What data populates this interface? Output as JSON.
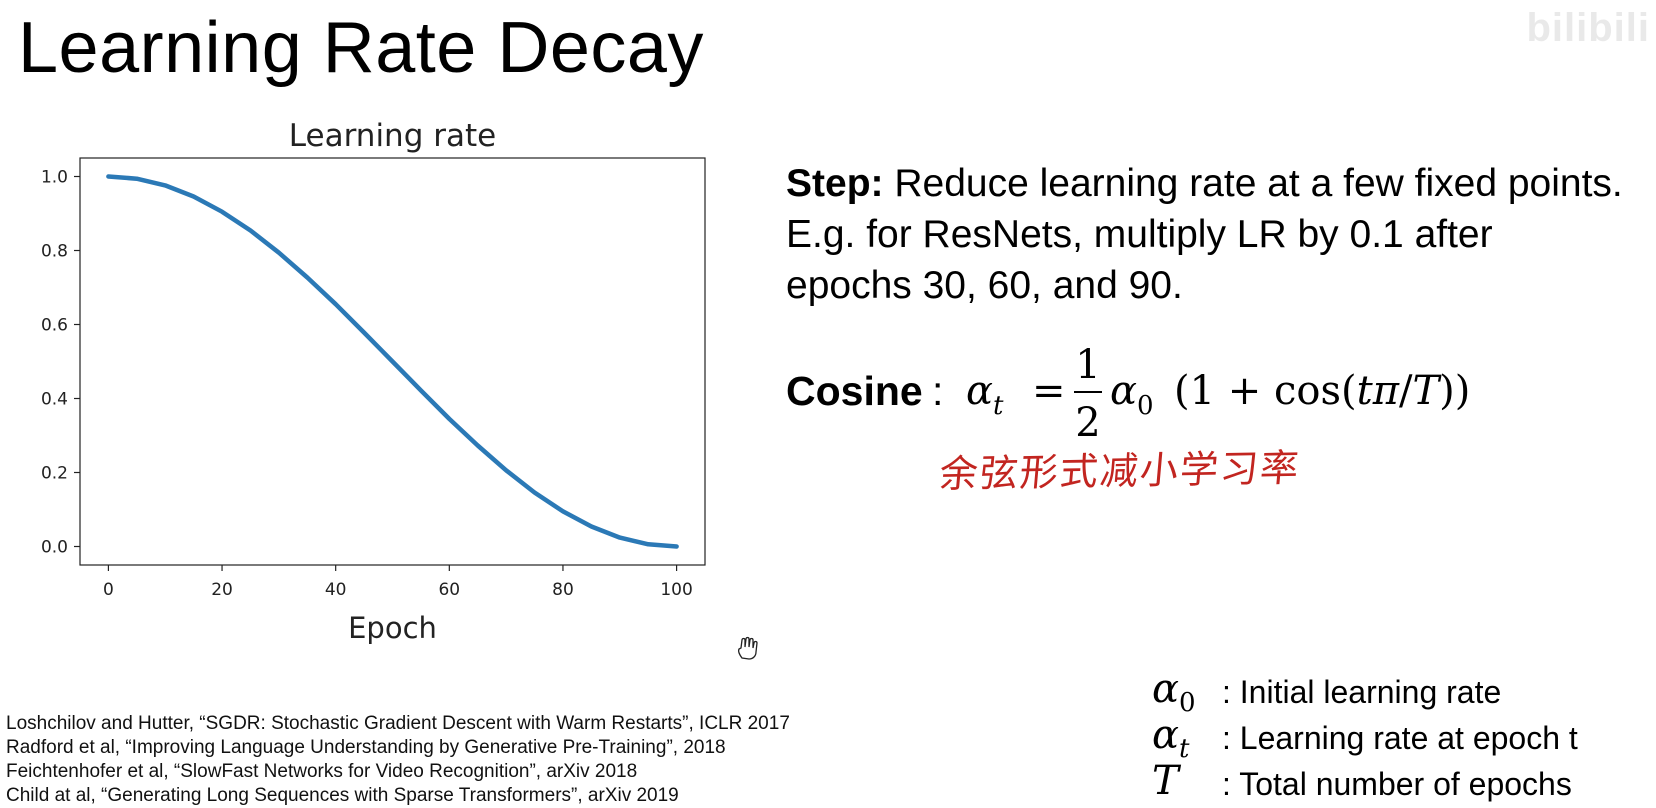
{
  "slide": {
    "title": "Learning Rate Decay",
    "watermark": "bilibili"
  },
  "chart_data": {
    "type": "line",
    "title": "Learning rate",
    "xlabel": "Epoch",
    "ylabel": "",
    "xlim": [
      -5,
      105
    ],
    "ylim": [
      -0.05,
      1.05
    ],
    "xticks": [
      0,
      20,
      40,
      60,
      80,
      100
    ],
    "yticks": [
      0.0,
      0.2,
      0.4,
      0.6,
      0.8,
      1.0
    ],
    "xtick_labels": [
      "0",
      "20",
      "40",
      "60",
      "80",
      "100"
    ],
    "ytick_labels": [
      "0.0",
      "0.2",
      "0.4",
      "0.6",
      "0.8",
      "1.0"
    ],
    "grid": false,
    "color": "#2b79b6",
    "series": [
      {
        "x": [
          0,
          5,
          10,
          15,
          20,
          25,
          30,
          35,
          40,
          45,
          50,
          55,
          60,
          65,
          70,
          75,
          80,
          85,
          90,
          95,
          100
        ],
        "y": [
          1.0,
          0.994,
          0.976,
          0.946,
          0.905,
          0.854,
          0.794,
          0.727,
          0.655,
          0.578,
          0.5,
          0.422,
          0.345,
          0.273,
          0.206,
          0.146,
          0.095,
          0.054,
          0.024,
          0.006,
          0.0
        ]
      }
    ]
  },
  "step": {
    "label": "Step:",
    "text": " Reduce learning rate at a few fixed points. E.g. for ResNets, multiply LR by 0.1 after epochs 30, 60, and 90."
  },
  "cosine": {
    "label": "Cosine",
    "colon": ":",
    "formula": {
      "alpha": "α",
      "sub_t": "t",
      "equals": "=",
      "num": "1",
      "den": "2",
      "sub_0": "0",
      "rest": "(1 + cos(",
      "tpi": "tπ",
      "slash": "/",
      "T": "T",
      "close": "))"
    }
  },
  "note": "余弦形式减小学习率",
  "citations": [
    "Loshchilov and Hutter, “SGDR: Stochastic Gradient Descent with Warm Restarts”, ICLR 2017",
    "Radford et al, “Improving Language Understanding by Generative Pre-Training”, 2018",
    "Feichtenhofer et al, “SlowFast Networks for Video Recognition”, arXiv 2018",
    "Child at al, “Generating Long Sequences with Sparse Transformers”, arXiv 2019"
  ],
  "legend": [
    {
      "symbol": "α",
      "sub": "0",
      "desc": ": Initial learning rate"
    },
    {
      "symbol": "α",
      "sub": "t",
      "desc": ": Learning rate at epoch t"
    },
    {
      "symbol": "T",
      "sub": "",
      "desc": ": Total number of epochs"
    }
  ]
}
